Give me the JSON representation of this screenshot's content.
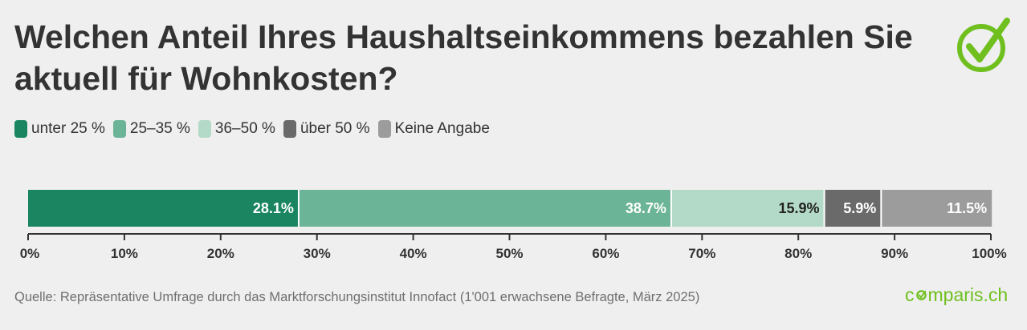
{
  "title": "Welchen Anteil Ihres Haushaltseinkommens bezahlen Sie aktuell für Wohnkosten?",
  "chart_data": {
    "type": "bar",
    "orientation": "horizontal",
    "stacked": true,
    "categories": [
      ""
    ],
    "series": [
      {
        "name": "unter 25 %",
        "values": [
          28.1
        ],
        "label": "28.1%",
        "color": "#1a8560",
        "label_color": "#ffffff"
      },
      {
        "name": "25–35 %",
        "values": [
          38.7
        ],
        "label": "38.7%",
        "color": "#6bb497",
        "label_color": "#ffffff"
      },
      {
        "name": "36–50 %",
        "values": [
          15.9
        ],
        "label": "15.9%",
        "color": "#b3d9c8",
        "label_color": "#222222"
      },
      {
        "name": "über 50 %",
        "values": [
          5.9
        ],
        "label": "5.9%",
        "color": "#6a6a6a",
        "label_color": "#ffffff"
      },
      {
        "name": "Keine Angabe",
        "values": [
          11.5
        ],
        "label": "11.5%",
        "color": "#9c9c9c",
        "label_color": "#ffffff"
      }
    ],
    "xlim": [
      0,
      100
    ],
    "xticks": [
      0,
      10,
      20,
      30,
      40,
      50,
      60,
      70,
      80,
      90,
      100
    ],
    "xtick_labels": [
      "0%",
      "10%",
      "20%",
      "30%",
      "40%",
      "50%",
      "60%",
      "70%",
      "80%",
      "90%",
      "100%"
    ],
    "grid": false,
    "legend_position": "top-left"
  },
  "source": "Quelle: Repräsentative Umfrage durch das Marktforschungsinstitut Innofact (1'001 erwachsene Befragte, März 2025)",
  "brand": {
    "prefix": "c",
    "suffix": "mparis.ch",
    "color": "#6fc01f"
  },
  "icons": {
    "logo": "checkmark-circle-icon",
    "brand_o": "comparis-o-icon"
  }
}
